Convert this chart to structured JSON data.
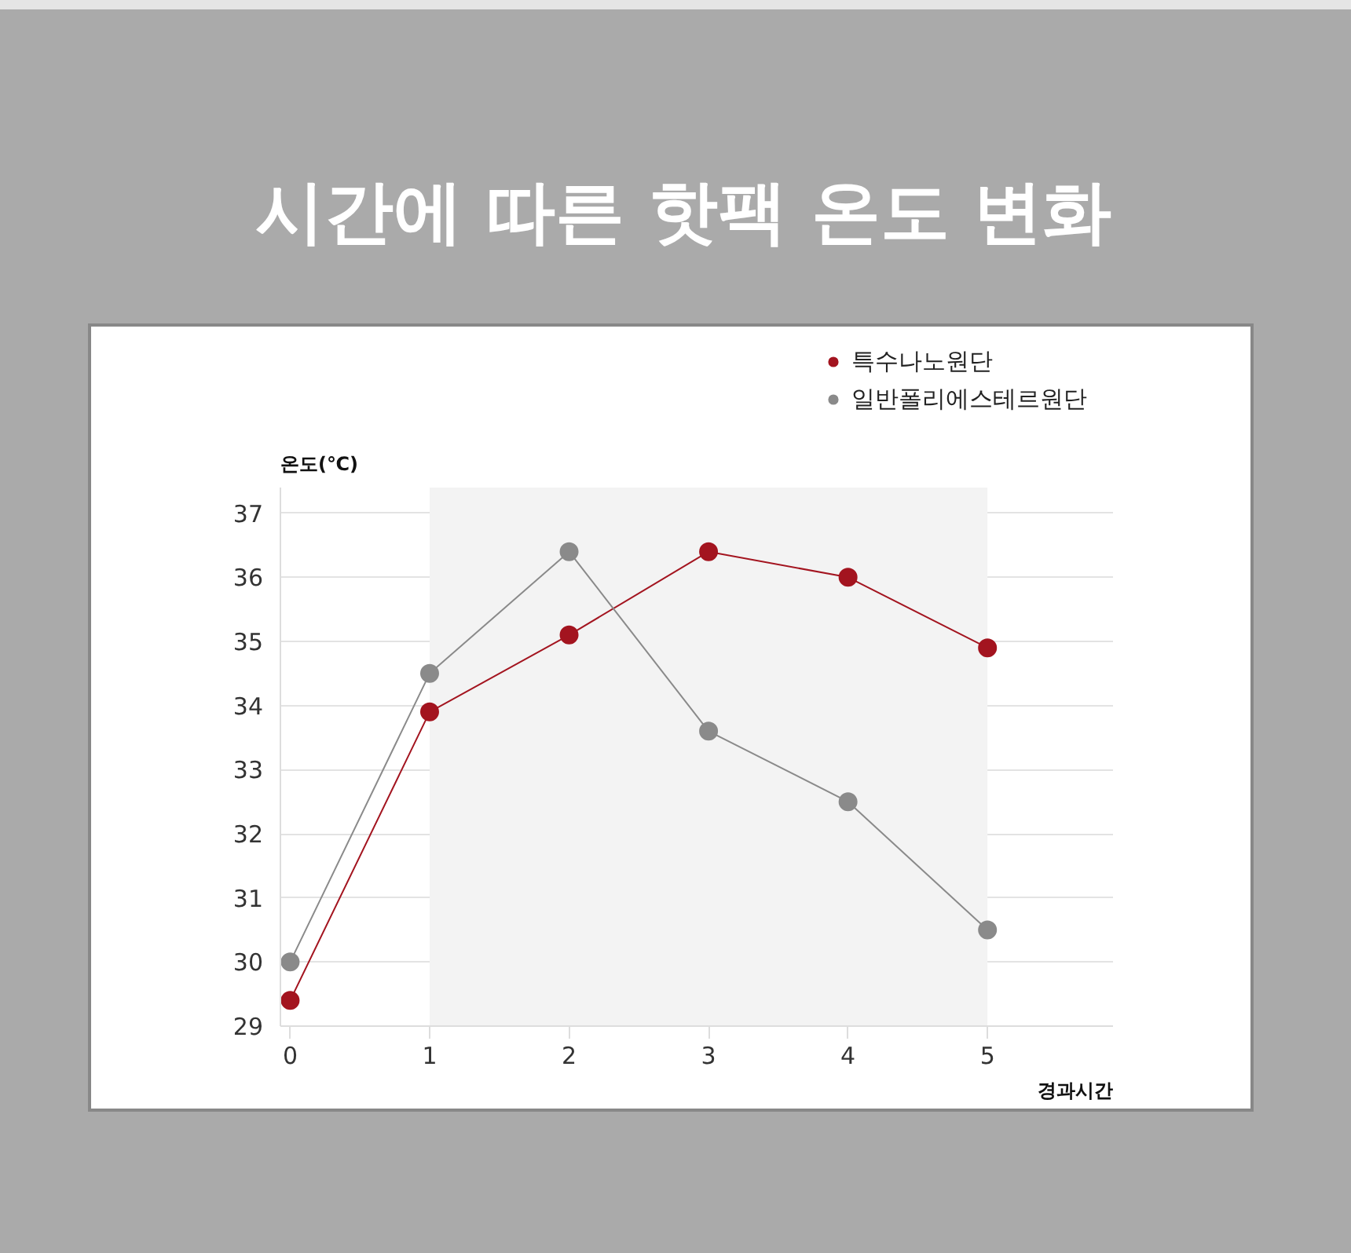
{
  "chart_data": {
    "type": "line",
    "title": "시간에 따른 핫팩 온도 변화",
    "xlabel": "경과시간",
    "ylabel": "온도(℃)",
    "x": [
      0,
      1,
      2,
      3,
      4,
      5
    ],
    "series": [
      {
        "name": "특수나노원단",
        "color": "#a3141f",
        "values": [
          29.4,
          33.9,
          35.1,
          36.4,
          36.0,
          34.9
        ]
      },
      {
        "name": "일반폴리에스테르원단",
        "color": "#8a8a8a",
        "values": [
          30.0,
          34.5,
          36.4,
          33.6,
          32.5,
          30.5
        ]
      }
    ],
    "xlim": [
      -0.07,
      5.9
    ],
    "xticks": [
      0,
      1,
      2,
      3,
      4,
      5
    ],
    "ylim": [
      29,
      37.4
    ],
    "yticks": [
      29,
      30,
      31,
      32,
      33,
      34,
      35,
      36,
      37
    ],
    "bands": [
      {
        "axis": "x",
        "from": 1,
        "to": 5,
        "color": "#f3f3f3"
      }
    ],
    "grid": "y",
    "legend": "top right",
    "marker": "circle",
    "line_style": "solid"
  }
}
